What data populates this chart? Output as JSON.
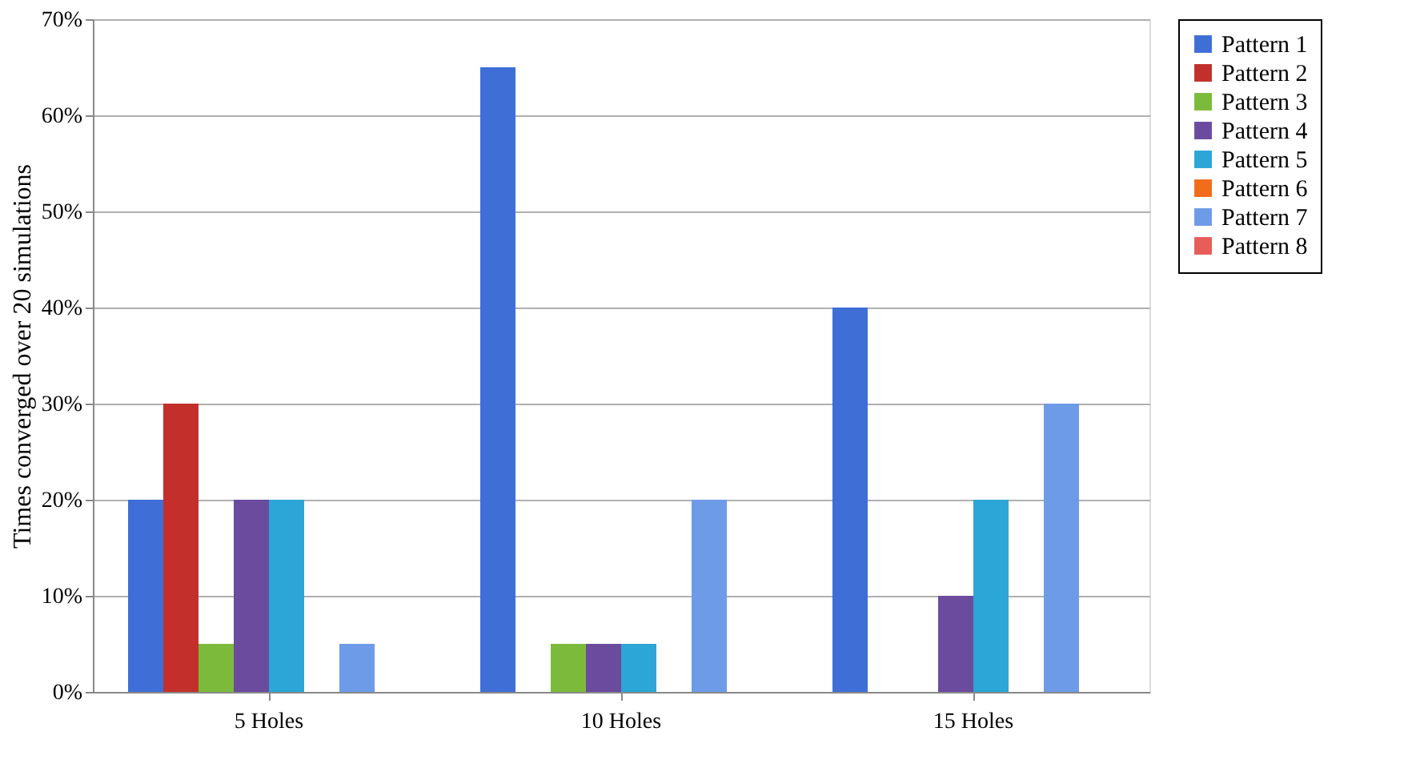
{
  "chart_data": {
    "type": "bar",
    "ylabel": "Times converged over 20 simulations",
    "categories": [
      "5 Holes",
      "10 Holes",
      "15 Holes"
    ],
    "series": [
      {
        "name": "Pattern 1",
        "color": "#3f6fd6",
        "values": [
          20,
          65,
          40
        ]
      },
      {
        "name": "Pattern 2",
        "color": "#c3302b",
        "values": [
          30,
          0,
          0
        ]
      },
      {
        "name": "Pattern 3",
        "color": "#7cba3c",
        "values": [
          5,
          5,
          0
        ]
      },
      {
        "name": "Pattern 4",
        "color": "#6b4b9e",
        "values": [
          20,
          5,
          10
        ]
      },
      {
        "name": "Pattern 5",
        "color": "#2ba6d6",
        "values": [
          20,
          5,
          20
        ]
      },
      {
        "name": "Pattern 6",
        "color": "#f26c1c",
        "values": [
          0,
          0,
          0
        ]
      },
      {
        "name": "Pattern 7",
        "color": "#6e9be8",
        "values": [
          5,
          20,
          30
        ]
      },
      {
        "name": "Pattern 8",
        "color": "#e85c5a",
        "values": [
          0,
          0,
          0
        ]
      }
    ],
    "ylim": [
      0,
      70
    ],
    "yticks": [
      {
        "value": 0,
        "label": "0%"
      },
      {
        "value": 10,
        "label": "10%"
      },
      {
        "value": 20,
        "label": "20%"
      },
      {
        "value": 30,
        "label": "30%"
      },
      {
        "value": 40,
        "label": "40%"
      },
      {
        "value": 50,
        "label": "50%"
      },
      {
        "value": 60,
        "label": "60%"
      },
      {
        "value": 70,
        "label": "70%"
      }
    ],
    "grid": "y",
    "legend": "right"
  }
}
